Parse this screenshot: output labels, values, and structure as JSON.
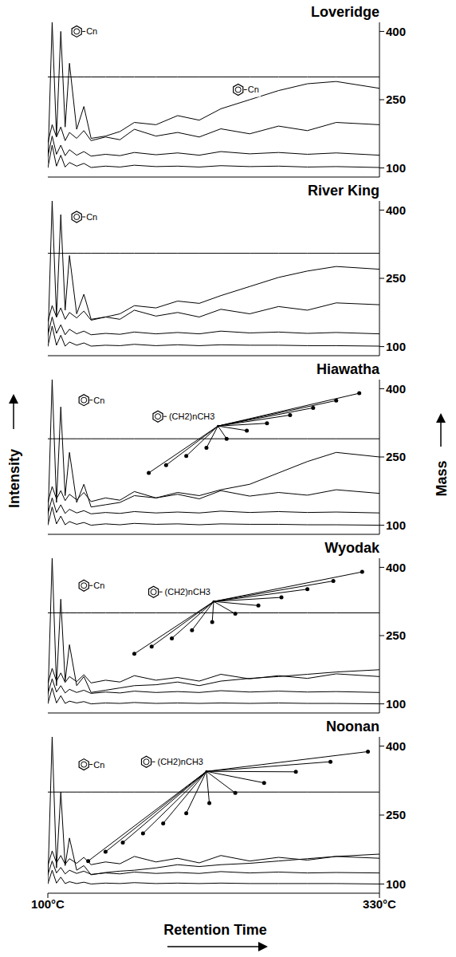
{
  "figure": {
    "left_label": "Intensity",
    "right_label": "Mass",
    "x_label": "Retention Time"
  },
  "chart_data": [
    {
      "type": "line",
      "title": "Loveridge",
      "color": "#000000",
      "tick_labels": "y",
      "xlim": [
        100,
        330
      ],
      "ylim": [
        80,
        420
      ],
      "yticks": [
        100,
        250,
        400
      ],
      "x": [
        100,
        103,
        106,
        109,
        112,
        115,
        120,
        125,
        130,
        140,
        150,
        160,
        175,
        190,
        205,
        220,
        240,
        260,
        280,
        300,
        330
      ],
      "series": [
        {
          "values": [
            110,
            420,
            170,
            400,
            190,
            330,
            185,
            235,
            165,
            170,
            180,
            200,
            195,
            215,
            205,
            230,
            250,
            270,
            285,
            290,
            275
          ]
        },
        {
          "values": [
            300,
            300,
            300,
            300,
            300,
            300,
            300,
            300,
            300,
            300,
            300,
            300,
            300,
            300,
            300,
            300,
            300,
            300,
            300,
            300,
            300
          ]
        },
        {
          "values": [
            100,
            150,
            104,
            128,
            102,
            112,
            104,
            110,
            101,
            104,
            102,
            106,
            103,
            104,
            102,
            105,
            103,
            104,
            102,
            103,
            101
          ]
        },
        {
          "values": [
            125,
            170,
            130,
            150,
            127,
            140,
            128,
            136,
            126,
            130,
            127,
            134,
            129,
            133,
            128,
            136,
            131,
            134,
            130,
            133,
            128
          ]
        },
        {
          "values": [
            155,
            195,
            168,
            190,
            160,
            178,
            165,
            182,
            160,
            168,
            162,
            185,
            170,
            178,
            168,
            186,
            175,
            192,
            182,
            200,
            195
          ]
        }
      ],
      "annotations": [
        {
          "text": "Cn",
          "x": 120,
          "y": 400
        },
        {
          "text": "Cn",
          "x": 232,
          "y": 272
        }
      ]
    },
    {
      "type": "line",
      "title": "River King",
      "color": "#000000",
      "tick_labels": "y",
      "xlim": [
        100,
        330
      ],
      "ylim": [
        80,
        420
      ],
      "yticks": [
        100,
        250,
        400
      ],
      "x": [
        100,
        103,
        106,
        109,
        112,
        115,
        120,
        125,
        130,
        140,
        150,
        160,
        175,
        190,
        205,
        220,
        240,
        260,
        280,
        300,
        330
      ],
      "series": [
        {
          "values": [
            108,
            420,
            165,
            390,
            180,
            300,
            172,
            215,
            160,
            165,
            172,
            190,
            185,
            200,
            195,
            212,
            232,
            252,
            266,
            276,
            270
          ]
        },
        {
          "values": [
            305,
            305,
            305,
            305,
            305,
            305,
            305,
            305,
            305,
            305,
            305,
            305,
            305,
            305,
            305,
            305,
            305,
            305,
            305,
            305,
            305
          ]
        },
        {
          "values": [
            100,
            145,
            103,
            125,
            101,
            110,
            103,
            108,
            101,
            103,
            102,
            105,
            102,
            104,
            102,
            104,
            103,
            103,
            102,
            102,
            101
          ]
        },
        {
          "values": [
            125,
            165,
            129,
            148,
            126,
            138,
            128,
            134,
            126,
            129,
            127,
            132,
            128,
            131,
            128,
            134,
            130,
            132,
            129,
            131,
            128
          ]
        },
        {
          "values": [
            155,
            190,
            165,
            185,
            160,
            175,
            163,
            178,
            158,
            165,
            160,
            180,
            167,
            175,
            165,
            182,
            172,
            188,
            180,
            196,
            192
          ]
        }
      ],
      "annotations": [
        {
          "text": "Cn",
          "x": 120,
          "y": 385
        }
      ]
    },
    {
      "type": "line",
      "title": "Hiawatha",
      "color": "#000000",
      "tick_labels": "y",
      "xlim": [
        100,
        330
      ],
      "ylim": [
        80,
        420
      ],
      "yticks": [
        100,
        250,
        400
      ],
      "x": [
        100,
        103,
        106,
        109,
        112,
        115,
        120,
        125,
        130,
        140,
        150,
        160,
        175,
        190,
        205,
        220,
        240,
        260,
        280,
        300,
        330
      ],
      "series": [
        {
          "values": [
            105,
            420,
            150,
            360,
            165,
            260,
            150,
            190,
            140,
            145,
            150,
            165,
            160,
            172,
            165,
            178,
            190,
            215,
            240,
            260,
            250
          ]
        },
        {
          "values": [
            290,
            290,
            290,
            290,
            290,
            290,
            290,
            290,
            290,
            290,
            290,
            290,
            290,
            290,
            290,
            290,
            290,
            290,
            290,
            290,
            290
          ]
        },
        {
          "values": [
            100,
            140,
            103,
            120,
            101,
            108,
            102,
            106,
            100,
            103,
            101,
            104,
            102,
            103,
            101,
            103,
            102,
            102,
            101,
            101,
            100
          ]
        },
        {
          "values": [
            125,
            160,
            128,
            145,
            126,
            135,
            127,
            132,
            125,
            128,
            126,
            130,
            127,
            129,
            127,
            131,
            128,
            130,
            128,
            129,
            127
          ]
        },
        {
          "values": [
            150,
            185,
            158,
            176,
            154,
            168,
            156,
            172,
            152,
            160,
            155,
            174,
            160,
            168,
            158,
            176,
            164,
            172,
            166,
            178,
            170
          ]
        }
      ],
      "annotations": [
        {
          "text": "Cn",
          "x": 125,
          "y": 375
        },
        {
          "text": "(CH2)nCH3",
          "x": 218,
          "y": 318,
          "points": [
            [
              170,
              215
            ],
            [
              182,
              232
            ],
            [
              196,
              252
            ],
            [
              210,
              270
            ],
            [
              224,
              290
            ],
            [
              238,
              308
            ],
            [
              252,
              324
            ],
            [
              268,
              342
            ],
            [
              284,
              358
            ],
            [
              300,
              374
            ],
            [
              316,
              390
            ]
          ]
        }
      ]
    },
    {
      "type": "line",
      "title": "Wyodak",
      "color": "#000000",
      "tick_labels": "y",
      "xlim": [
        100,
        330
      ],
      "ylim": [
        80,
        420
      ],
      "yticks": [
        100,
        250,
        400
      ],
      "x": [
        100,
        103,
        106,
        109,
        112,
        115,
        120,
        125,
        130,
        140,
        150,
        160,
        175,
        190,
        205,
        220,
        240,
        260,
        280,
        300,
        330
      ],
      "series": [
        {
          "values": [
            105,
            420,
            140,
            330,
            150,
            230,
            140,
            160,
            125,
            130,
            135,
            140,
            142,
            148,
            140,
            150,
            156,
            160,
            165,
            170,
            175
          ]
        },
        {
          "values": [
            300,
            300,
            300,
            300,
            300,
            300,
            300,
            300,
            300,
            300,
            300,
            300,
            300,
            300,
            300,
            300,
            300,
            300,
            300,
            300,
            300
          ]
        },
        {
          "values": [
            100,
            135,
            102,
            118,
            101,
            106,
            102,
            105,
            100,
            102,
            101,
            103,
            101,
            102,
            101,
            102,
            101,
            102,
            101,
            101,
            100
          ]
        },
        {
          "values": [
            122,
            155,
            126,
            140,
            124,
            132,
            125,
            130,
            123,
            126,
            124,
            128,
            125,
            127,
            125,
            129,
            126,
            128,
            126,
            127,
            125
          ]
        },
        {
          "values": [
            145,
            178,
            150,
            168,
            147,
            160,
            149,
            164,
            146,
            152,
            148,
            162,
            152,
            158,
            150,
            165,
            155,
            162,
            156,
            166,
            160
          ]
        }
      ],
      "annotations": [
        {
          "text": "Cn",
          "x": 125,
          "y": 360
        },
        {
          "text": "(CH2)nCH3",
          "x": 215,
          "y": 325,
          "points": [
            [
              160,
              210
            ],
            [
              172,
              226
            ],
            [
              186,
              244
            ],
            [
              200,
              262
            ],
            [
              214,
              280
            ],
            [
              230,
              298
            ],
            [
              246,
              316
            ],
            [
              262,
              334
            ],
            [
              280,
              352
            ],
            [
              298,
              370
            ],
            [
              318,
              390
            ]
          ]
        }
      ]
    },
    {
      "type": "line",
      "title": "Noonan",
      "color": "#000000",
      "xlim": [
        100,
        330
      ],
      "ylim": [
        80,
        420
      ],
      "yticks": [
        100,
        250,
        400
      ],
      "xticks": [
        {
          "value": 100,
          "label": "100°C"
        },
        {
          "value": 330,
          "label": "330°C"
        }
      ],
      "x": [
        100,
        103,
        106,
        109,
        112,
        115,
        120,
        125,
        130,
        140,
        150,
        160,
        175,
        190,
        205,
        220,
        240,
        260,
        280,
        300,
        330
      ],
      "series": [
        {
          "values": [
            105,
            420,
            135,
            300,
            140,
            200,
            130,
            140,
            120,
            125,
            128,
            130,
            135,
            142,
            138,
            142,
            145,
            150,
            155,
            160,
            165
          ]
        },
        {
          "values": [
            300,
            300,
            300,
            300,
            300,
            300,
            300,
            300,
            300,
            300,
            300,
            300,
            300,
            300,
            300,
            300,
            300,
            300,
            300,
            300,
            300
          ]
        },
        {
          "values": [
            100,
            130,
            102,
            115,
            101,
            105,
            101,
            104,
            100,
            102,
            101,
            103,
            101,
            102,
            101,
            102,
            101,
            101,
            101,
            101,
            100
          ]
        },
        {
          "values": [
            120,
            150,
            124,
            136,
            122,
            130,
            123,
            128,
            121,
            124,
            122,
            126,
            123,
            125,
            123,
            127,
            124,
            126,
            124,
            125,
            124
          ]
        },
        {
          "values": [
            140,
            172,
            146,
            162,
            143,
            155,
            145,
            158,
            142,
            148,
            144,
            160,
            148,
            156,
            146,
            162,
            150,
            158,
            152,
            160,
            156
          ]
        }
      ],
      "annotations": [
        {
          "text": "Cn",
          "x": 125,
          "y": 360
        },
        {
          "text": "(CH2)nCH3",
          "x": 210,
          "y": 345,
          "points": [
            [
              128,
              150
            ],
            [
              140,
              170
            ],
            [
              152,
              190
            ],
            [
              166,
              210
            ],
            [
              180,
              232
            ],
            [
              196,
              254
            ],
            [
              212,
              276
            ],
            [
              230,
              298
            ],
            [
              250,
              320
            ],
            [
              272,
              344
            ],
            [
              296,
              366
            ],
            [
              322,
              388
            ]
          ]
        }
      ]
    }
  ]
}
